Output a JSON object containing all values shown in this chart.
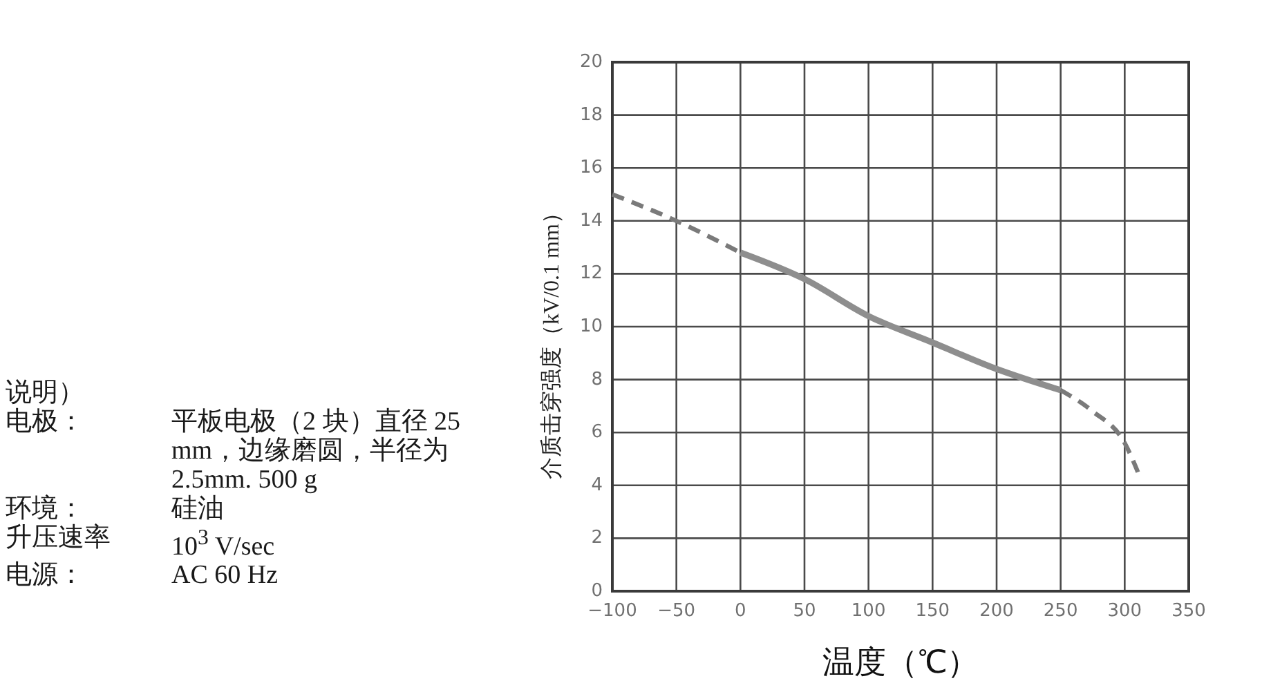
{
  "chart_data": {
    "type": "line",
    "xlabel": "温度（℃）",
    "ylabel": "介质击穿强度（kV/0.1 mm）",
    "xlim": [
      -100,
      350
    ],
    "ylim": [
      0,
      20
    ],
    "xticks": [
      -100,
      -50,
      0,
      50,
      100,
      150,
      200,
      250,
      300,
      350
    ],
    "yticks": [
      0,
      2,
      4,
      6,
      8,
      10,
      12,
      14,
      16,
      18,
      20
    ],
    "grid": true,
    "series": [
      {
        "color": "#7a7a7a",
        "line_style": "dashed",
        "x": [
          -100,
          -50,
          0
        ],
        "values": [
          15,
          14,
          12.8
        ]
      },
      {
        "color": "#8e8e8e",
        "line_style": "solid",
        "x": [
          0,
          50,
          100,
          150,
          200,
          250
        ],
        "values": [
          12.8,
          11.8,
          10.4,
          9.4,
          8.4,
          7.6
        ]
      },
      {
        "color": "#7a7a7a",
        "line_style": "dashed",
        "x": [
          250,
          275,
          300,
          312
        ],
        "values": [
          7.6,
          6.8,
          5.6,
          4.3
        ]
      }
    ],
    "annotations": [
      "说明）",
      "电极：",
      "平板电极（2 块）直径 25 mm，边缘磨圆，半径为 2.5mm. 500 g",
      "环境：",
      "硅油",
      "升压速率",
      "10$^{3}$ V/sec",
      "电源：",
      "AC 60 Hz"
    ]
  }
}
